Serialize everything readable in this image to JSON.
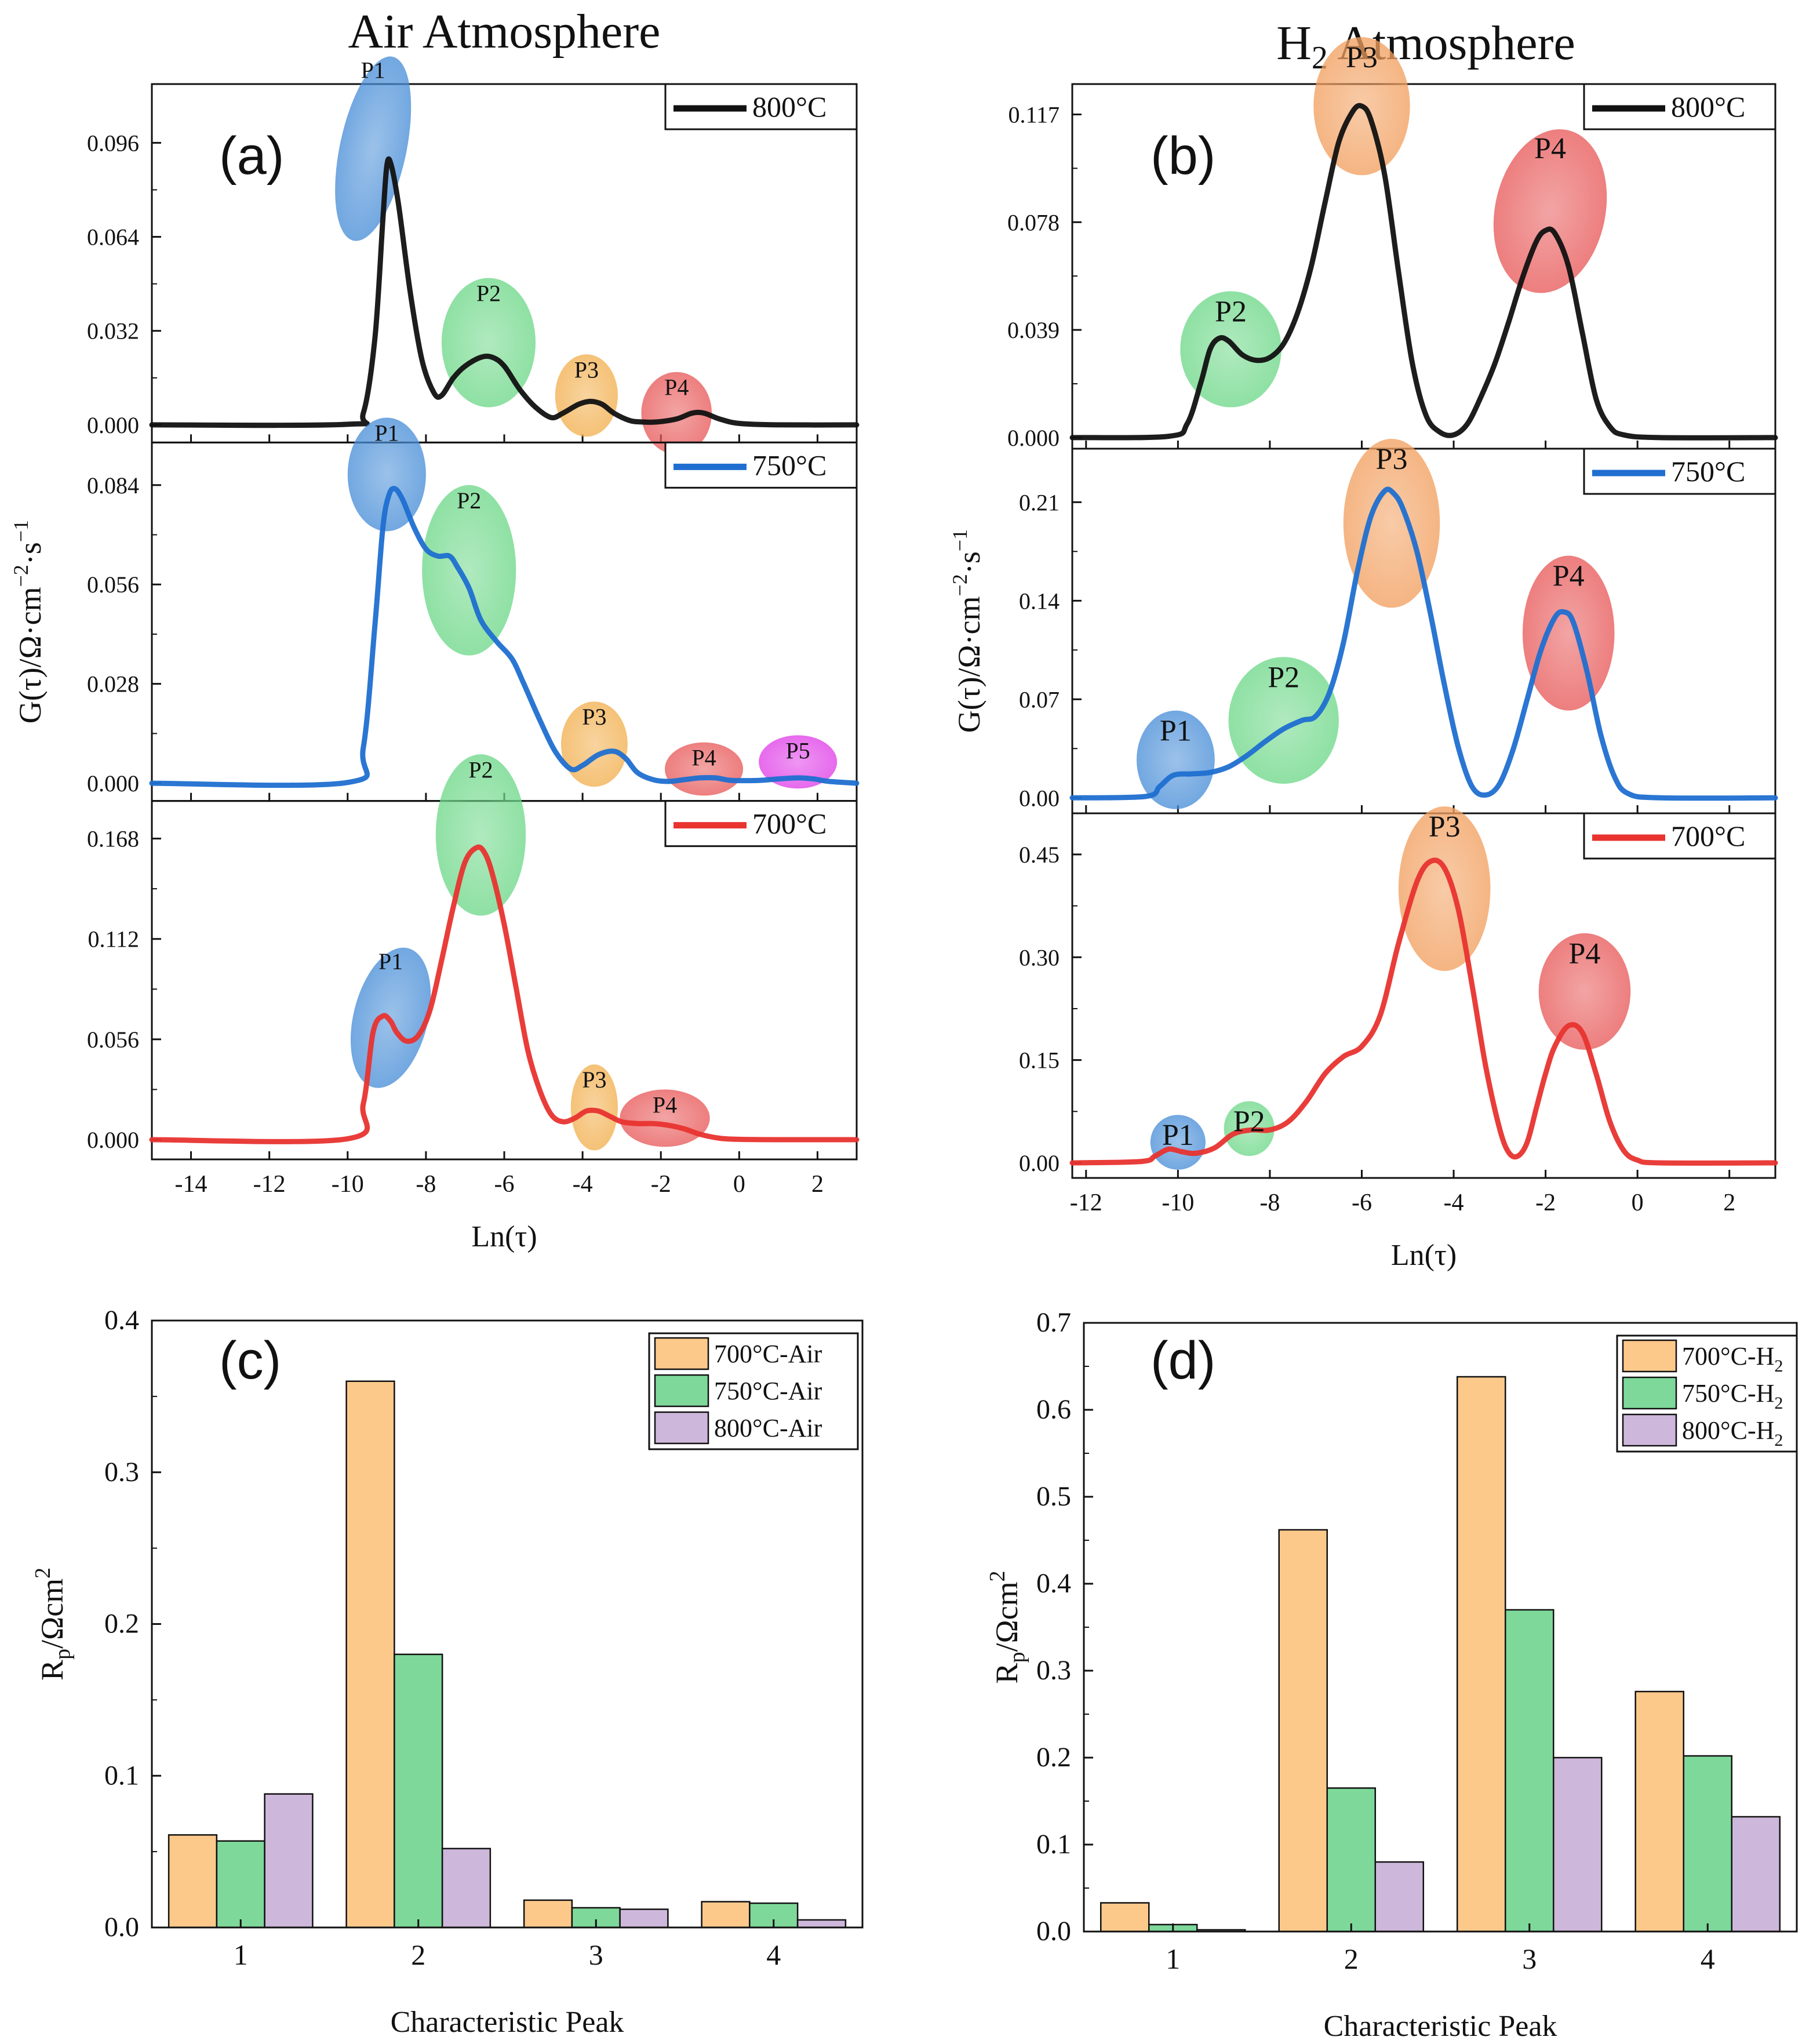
{
  "figure_titles": {
    "left": "Air Atmosphere",
    "right_main": "H",
    "right_sub": "2",
    "right_rest": " Atmosphere"
  },
  "chart_data": [
    {
      "id": "a",
      "label": "(a)",
      "type": "line",
      "title": "Air Atmosphere",
      "xlabel": "Ln(τ)",
      "ylabel": "G(τ)/Ω·cm⁻²·s⁻¹",
      "xlim": [
        -15,
        3
      ],
      "xticks": [
        -14,
        -12,
        -10,
        -8,
        -6,
        -4,
        -2,
        0,
        2
      ],
      "subplots": [
        {
          "name": "800°C",
          "color": "#111111",
          "ylim": [
            -0.006,
            0.116
          ],
          "yticks": [
            "0.000",
            "0.032",
            "0.064",
            "0.096"
          ],
          "x": [
            -15,
            -10,
            -9.6,
            -9.3,
            -9.1,
            -9.0,
            -8.9,
            -8.7,
            -8.4,
            -8.1,
            -7.8,
            -7.6,
            -7.3,
            -7.0,
            -6.6,
            -6.3,
            -6.0,
            -5.6,
            -5.2,
            -4.8,
            -4.5,
            -4.1,
            -3.8,
            -3.5,
            -3.2,
            -2.8,
            -2.5,
            -2.1,
            -1.6,
            -1.2,
            -0.9,
            -0.5,
            0,
            1,
            3
          ],
          "y": [
            0,
            0.0002,
            0.004,
            0.03,
            0.07,
            0.088,
            0.089,
            0.075,
            0.045,
            0.022,
            0.011,
            0.01,
            0.016,
            0.02,
            0.023,
            0.023,
            0.02,
            0.012,
            0.006,
            0.0025,
            0.004,
            0.007,
            0.008,
            0.007,
            0.004,
            0.0015,
            0.001,
            0.001,
            0.002,
            0.004,
            0.004,
            0.002,
            0.0005,
            0,
            0
          ],
          "annotations": [
            {
              "label": "P1",
              "x": -9.35,
              "y": 0.094,
              "rx": 0.85,
              "ry": 0.032,
              "rot": 12,
              "color": "#4a8fd8"
            },
            {
              "label": "P2",
              "x": -6.4,
              "y": 0.028,
              "rx": 1.2,
              "ry": 0.022,
              "rot": 0,
              "color": "#6fd88a"
            },
            {
              "label": "P3",
              "x": -3.9,
              "y": 0.01,
              "rx": 0.8,
              "ry": 0.014,
              "rot": 0,
              "color": "#f2b050"
            },
            {
              "label": "P4",
              "x": -1.6,
              "y": 0.004,
              "rx": 0.9,
              "ry": 0.014,
              "rot": 0,
              "color": "#e85a5a"
            }
          ],
          "legend": "800°C"
        },
        {
          "name": "750°C",
          "color": "#1f6fd0",
          "ylim": [
            -0.005,
            0.096
          ],
          "yticks": [
            "0.000",
            "0.028",
            "0.056",
            "0.084"
          ],
          "x": [
            -15,
            -10,
            -9.6,
            -9.3,
            -9.1,
            -8.95,
            -8.8,
            -8.6,
            -8.3,
            -8.0,
            -7.7,
            -7.4,
            -7.2,
            -6.9,
            -6.6,
            -6.2,
            -5.8,
            -5.5,
            -5.1,
            -4.7,
            -4.3,
            -4.0,
            -3.6,
            -3.2,
            -2.9,
            -2.6,
            -2.2,
            -1.8,
            -1.4,
            -1.0,
            -0.6,
            -0.2,
            0.5,
            1.0,
            1.5,
            1.9,
            2.3,
            3
          ],
          "y": [
            0,
            0.0002,
            0.01,
            0.045,
            0.072,
            0.081,
            0.083,
            0.08,
            0.072,
            0.066,
            0.064,
            0.064,
            0.061,
            0.055,
            0.046,
            0.04,
            0.035,
            0.028,
            0.018,
            0.009,
            0.004,
            0.005,
            0.008,
            0.009,
            0.007,
            0.003,
            0.001,
            0.0005,
            0.001,
            0.0015,
            0.0015,
            0.0008,
            0.0008,
            0.0012,
            0.0015,
            0.0012,
            0.0005,
            0
          ],
          "annotations": [
            {
              "label": "P1",
              "x": -9.0,
              "y": 0.087,
              "rx": 1.0,
              "ry": 0.016,
              "rot": 0,
              "color": "#4a8fd8"
            },
            {
              "label": "P2",
              "x": -6.9,
              "y": 0.06,
              "rx": 1.2,
              "ry": 0.024,
              "rot": 0,
              "color": "#6fd88a"
            },
            {
              "label": "P3",
              "x": -3.7,
              "y": 0.011,
              "rx": 0.85,
              "ry": 0.012,
              "rot": 0,
              "color": "#f2b050"
            },
            {
              "label": "P4",
              "x": -0.9,
              "y": 0.004,
              "rx": 1.0,
              "ry": 0.0075,
              "rot": 0,
              "color": "#e85a5a"
            },
            {
              "label": "P5",
              "x": 1.5,
              "y": 0.006,
              "rx": 1.0,
              "ry": 0.0075,
              "rot": 0,
              "color": "#e040e8"
            }
          ],
          "legend": "750°C"
        },
        {
          "name": "700°C",
          "color": "#e8332f",
          "ylim": [
            -0.011,
            0.189
          ],
          "yticks": [
            "0.000",
            "0.056",
            "0.112",
            "0.168"
          ],
          "x": [
            -15,
            -10,
            -9.6,
            -9.35,
            -9.1,
            -8.9,
            -8.75,
            -8.5,
            -8.2,
            -7.9,
            -7.6,
            -7.3,
            -7.0,
            -6.7,
            -6.5,
            -6.3,
            -6.0,
            -5.7,
            -5.4,
            -5.1,
            -4.8,
            -4.5,
            -4.2,
            -3.9,
            -3.6,
            -3.3,
            -3.0,
            -2.6,
            -2.2,
            -1.8,
            -1.4,
            -1.0,
            -0.5,
            0,
            1,
            3
          ],
          "y": [
            0,
            0.0005,
            0.02,
            0.06,
            0.069,
            0.066,
            0.06,
            0.055,
            0.058,
            0.072,
            0.1,
            0.13,
            0.155,
            0.163,
            0.16,
            0.148,
            0.12,
            0.085,
            0.05,
            0.028,
            0.014,
            0.01,
            0.012,
            0.016,
            0.016,
            0.013,
            0.01,
            0.009,
            0.009,
            0.008,
            0.006,
            0.003,
            0.0008,
            0.0002,
            0,
            0
          ],
          "annotations": [
            {
              "label": "P1",
              "x": -8.9,
              "y": 0.068,
              "rx": 0.95,
              "ry": 0.04,
              "rot": 14,
              "color": "#4a8fd8"
            },
            {
              "label": "P2",
              "x": -6.6,
              "y": 0.17,
              "rx": 1.15,
              "ry": 0.045,
              "rot": 0,
              "color": "#6fd88a"
            },
            {
              "label": "P3",
              "x": -3.7,
              "y": 0.018,
              "rx": 0.6,
              "ry": 0.024,
              "rot": 0,
              "color": "#f2b050"
            },
            {
              "label": "P4",
              "x": -1.9,
              "y": 0.012,
              "rx": 1.15,
              "ry": 0.016,
              "rot": 0,
              "color": "#e85a5a"
            }
          ],
          "legend": "700°C"
        }
      ]
    },
    {
      "id": "b",
      "label": "(b)",
      "type": "line",
      "title": "H2 Atmosphere",
      "xlabel": "Ln(τ)",
      "ylabel": "G(τ)/Ω·cm⁻²·s⁻¹",
      "xlim": [
        -12.3,
        3
      ],
      "xticks": [
        -12,
        -10,
        -8,
        -6,
        -4,
        -2,
        0,
        2
      ],
      "subplots": [
        {
          "name": "800°C",
          "color": "#111111",
          "ylim": [
            -0.004,
            0.128
          ],
          "yticks": [
            "0.000",
            "0.039",
            "0.078",
            "0.117"
          ],
          "x": [
            -12.3,
            -10.2,
            -9.8,
            -9.5,
            -9.3,
            -9.1,
            -8.9,
            -8.6,
            -8.3,
            -8.0,
            -7.7,
            -7.4,
            -7.1,
            -6.8,
            -6.5,
            -6.2,
            -6.0,
            -5.8,
            -5.5,
            -5.2,
            -4.9,
            -4.6,
            -4.3,
            -4.0,
            -3.7,
            -3.4,
            -3.1,
            -2.8,
            -2.5,
            -2.2,
            -2.0,
            -1.8,
            -1.5,
            -1.2,
            -0.9,
            -0.6,
            -0.3,
            0.5,
            3
          ],
          "y": [
            0,
            0.0005,
            0.005,
            0.02,
            0.032,
            0.036,
            0.035,
            0.03,
            0.028,
            0.029,
            0.034,
            0.045,
            0.062,
            0.085,
            0.107,
            0.118,
            0.12,
            0.115,
            0.095,
            0.06,
            0.027,
            0.008,
            0.002,
            0.001,
            0.005,
            0.015,
            0.027,
            0.042,
            0.058,
            0.071,
            0.075,
            0.074,
            0.062,
            0.038,
            0.014,
            0.004,
            0.001,
            0,
            0
          ],
          "annotations": [
            {
              "label": "P2",
              "x": -8.85,
              "y": 0.032,
              "rx": 1.1,
              "ry": 0.021,
              "rot": 0,
              "color": "#6fd88a"
            },
            {
              "label": "P3",
              "x": -6.0,
              "y": 0.12,
              "rx": 1.05,
              "ry": 0.025,
              "rot": 0,
              "color": "#f2a060"
            },
            {
              "label": "P4",
              "x": -1.9,
              "y": 0.082,
              "rx": 1.2,
              "ry": 0.03,
              "rot": 12,
              "color": "#e85a5a"
            }
          ],
          "legend": "800°C"
        },
        {
          "name": "750°C",
          "color": "#1f6fd0",
          "ylim": [
            -0.011,
            0.248
          ],
          "yticks": [
            "0.00",
            "0.07",
            "0.14",
            "0.21"
          ],
          "x": [
            -12.3,
            -10.7,
            -10.4,
            -10.1,
            -9.7,
            -9.3,
            -8.9,
            -8.5,
            -8.1,
            -7.7,
            -7.3,
            -7.0,
            -6.7,
            -6.4,
            -6.1,
            -5.8,
            -5.5,
            -5.3,
            -5.1,
            -4.8,
            -4.5,
            -4.2,
            -3.9,
            -3.6,
            -3.3,
            -3.0,
            -2.7,
            -2.4,
            -2.1,
            -1.8,
            -1.6,
            -1.4,
            -1.1,
            -0.8,
            -0.5,
            -0.2,
            0.5,
            3
          ],
          "y": [
            0,
            0.001,
            0.008,
            0.016,
            0.017,
            0.018,
            0.022,
            0.03,
            0.04,
            0.049,
            0.055,
            0.058,
            0.075,
            0.11,
            0.16,
            0.2,
            0.218,
            0.216,
            0.205,
            0.175,
            0.13,
            0.08,
            0.036,
            0.008,
            0.002,
            0.01,
            0.035,
            0.07,
            0.105,
            0.128,
            0.132,
            0.125,
            0.09,
            0.045,
            0.015,
            0.003,
            0,
            0
          ],
          "annotations": [
            {
              "label": "P1",
              "x": -10.05,
              "y": 0.027,
              "rx": 0.85,
              "ry": 0.035,
              "rot": 0,
              "color": "#4a8fd8"
            },
            {
              "label": "P2",
              "x": -7.7,
              "y": 0.055,
              "rx": 1.2,
              "ry": 0.045,
              "rot": 0,
              "color": "#6fd88a"
            },
            {
              "label": "P3",
              "x": -5.35,
              "y": 0.195,
              "rx": 1.05,
              "ry": 0.06,
              "rot": 0,
              "color": "#f2a060"
            },
            {
              "label": "P4",
              "x": -1.5,
              "y": 0.117,
              "rx": 1.0,
              "ry": 0.055,
              "rot": 0,
              "color": "#e85a5a"
            }
          ],
          "legend": "750°C"
        },
        {
          "name": "700°C",
          "color": "#e8332f",
          "ylim": [
            -0.022,
            0.51
          ],
          "yticks": [
            "0.00",
            "0.15",
            "0.30",
            "0.45"
          ],
          "x": [
            -12.3,
            -10.8,
            -10.5,
            -10.2,
            -9.9,
            -9.6,
            -9.2,
            -8.8,
            -8.4,
            -8.0,
            -7.6,
            -7.2,
            -6.8,
            -6.4,
            -6.0,
            -5.6,
            -5.2,
            -4.8,
            -4.5,
            -4.2,
            -3.9,
            -3.6,
            -3.3,
            -3.0,
            -2.8,
            -2.6,
            -2.4,
            -2.2,
            -2.0,
            -1.8,
            -1.5,
            -1.2,
            -0.9,
            -0.6,
            -0.3,
            0,
            0.5,
            3
          ],
          "y": [
            0,
            0.002,
            0.01,
            0.02,
            0.016,
            0.014,
            0.022,
            0.042,
            0.048,
            0.048,
            0.06,
            0.09,
            0.13,
            0.155,
            0.17,
            0.215,
            0.32,
            0.41,
            0.44,
            0.43,
            0.37,
            0.26,
            0.14,
            0.05,
            0.015,
            0.01,
            0.03,
            0.08,
            0.13,
            0.17,
            0.2,
            0.19,
            0.13,
            0.06,
            0.018,
            0.004,
            0,
            0
          ],
          "annotations": [
            {
              "label": "P1",
              "x": -10.0,
              "y": 0.03,
              "rx": 0.6,
              "ry": 0.04,
              "rot": 0,
              "color": "#4a8fd8"
            },
            {
              "label": "P2",
              "x": -8.45,
              "y": 0.05,
              "rx": 0.55,
              "ry": 0.04,
              "rot": 0,
              "color": "#6fd88a"
            },
            {
              "label": "P3",
              "x": -4.2,
              "y": 0.4,
              "rx": 1.0,
              "ry": 0.12,
              "rot": 0,
              "color": "#f2a060"
            },
            {
              "label": "P4",
              "x": -1.15,
              "y": 0.25,
              "rx": 1.0,
              "ry": 0.085,
              "rot": 0,
              "color": "#e85a5a"
            }
          ],
          "legend": "700°C"
        }
      ]
    },
    {
      "id": "c",
      "label": "(c)",
      "type": "bar",
      "xlabel": "Characteristic Peak",
      "ylabel": "Rp/Ωcm2",
      "categories": [
        "1",
        "2",
        "3",
        "4"
      ],
      "ylim": [
        0,
        0.4
      ],
      "yticks": [
        "0.0",
        "0.1",
        "0.2",
        "0.3",
        "0.4"
      ],
      "series": [
        {
          "name": "700°C-Air",
          "color": "#fcc98b",
          "values": [
            0.061,
            0.36,
            0.018,
            0.017
          ]
        },
        {
          "name": "750°C-Air",
          "color": "#7ed89a",
          "values": [
            0.057,
            0.18,
            0.013,
            0.016
          ]
        },
        {
          "name": "800°C-Air",
          "color": "#cdb7da",
          "values": [
            0.088,
            0.052,
            0.012,
            0.005
          ]
        }
      ]
    },
    {
      "id": "d",
      "label": "(d)",
      "type": "bar",
      "xlabel": "Characteristic Peak",
      "ylabel": "Rp/Ωcm2",
      "categories": [
        "1",
        "2",
        "3",
        "4"
      ],
      "ylim": [
        0,
        0.7
      ],
      "yticks": [
        "0.0",
        "0.1",
        "0.2",
        "0.3",
        "0.4",
        "0.5",
        "0.6",
        "0.7"
      ],
      "series": [
        {
          "name": "700°C-H",
          "sub": "2",
          "color": "#fcc98b",
          "values": [
            0.033,
            0.462,
            0.638,
            0.276
          ]
        },
        {
          "name": "750°C-H",
          "sub": "2",
          "color": "#7ed89a",
          "values": [
            0.008,
            0.165,
            0.37,
            0.202
          ]
        },
        {
          "name": "800°C-H",
          "sub": "2",
          "color": "#cdb7da",
          "values": [
            0.002,
            0.08,
            0.2,
            0.132
          ]
        }
      ]
    }
  ]
}
